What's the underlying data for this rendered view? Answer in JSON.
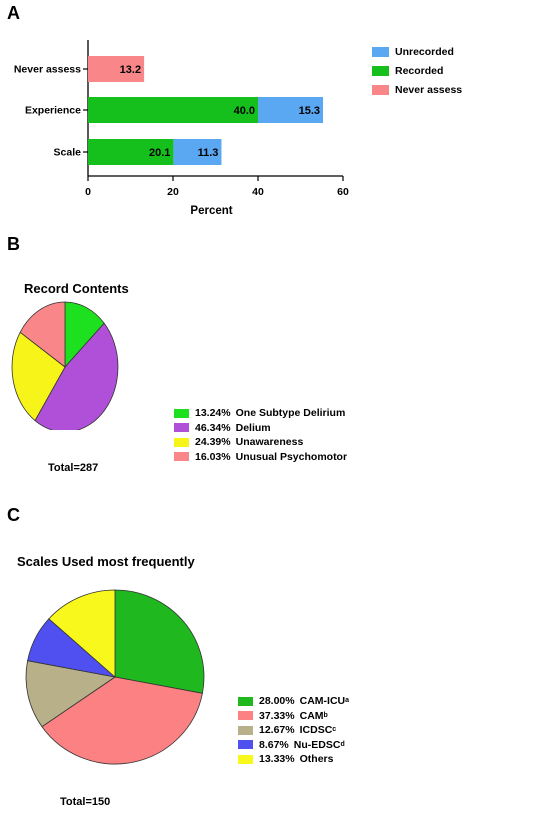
{
  "panels": {
    "a": "A",
    "b": "B",
    "c": "C"
  },
  "chart_data": [
    {
      "type": "bar",
      "orientation": "horizontal",
      "stacked": true,
      "categories": [
        "Never assess",
        "Experience",
        "Scale"
      ],
      "series": [
        {
          "name": "Unrecorded",
          "color": "#5aa7f2",
          "values": [
            0,
            15.3,
            11.3
          ]
        },
        {
          "name": "Recorded",
          "color": "#16c01c",
          "values": [
            0,
            40.0,
            20.1
          ]
        },
        {
          "name": "Never assess",
          "color": "#f98789",
          "values": [
            13.2,
            0,
            0
          ]
        }
      ],
      "data_labels": {
        "Unrecorded": [
          "",
          "15.3",
          "11.3"
        ],
        "Recorded": [
          "",
          "40.0",
          "20.1"
        ],
        "Never assess": [
          "13.2",
          "",
          ""
        ]
      },
      "xlabel": "Percent",
      "xlim": [
        0,
        60
      ],
      "xticks": [
        "0",
        "20",
        "40",
        "60"
      ],
      "legend_position": "top-right",
      "grid": false
    },
    {
      "type": "pie",
      "title": "Record Contents",
      "total_label": "Total=287",
      "slices": [
        {
          "label": "One Subtype Delirium",
          "pct_label": "13.24%",
          "value": 13.24,
          "color": "#1de11f"
        },
        {
          "label": "Delium",
          "pct_label": "46.34%",
          "value": 46.34,
          "color": "#b050d8"
        },
        {
          "label": "Unawareness",
          "pct_label": "24.39%",
          "value": 24.39,
          "color": "#f7f41a"
        },
        {
          "label": "Unusual Psychomotor",
          "pct_label": "16.03%",
          "value": 16.03,
          "color": "#f98789"
        }
      ],
      "legend_position": "bottom-right"
    },
    {
      "type": "pie",
      "title": "Scales Used most frequently",
      "total_label": "Total=150",
      "slices": [
        {
          "label": "CAM-ICU",
          "sup": "a",
          "pct_label": "28.00%",
          "value": 28.0,
          "color": "#1fb81f"
        },
        {
          "label": "CAM",
          "sup": "b",
          "pct_label": "37.33%",
          "value": 37.33,
          "color": "#fb8182"
        },
        {
          "label": "ICDSC",
          "sup": "c",
          "pct_label": "12.67%",
          "value": 12.67,
          "color": "#b7b088"
        },
        {
          "label": "Nu-EDSC",
          "sup": "d",
          "pct_label": "8.67%",
          "value": 8.67,
          "color": "#5050f0"
        },
        {
          "label": "Others",
          "sup": "",
          "pct_label": "13.33%",
          "value": 13.33,
          "color": "#f8f81d"
        }
      ],
      "legend_position": "bottom-right"
    }
  ]
}
